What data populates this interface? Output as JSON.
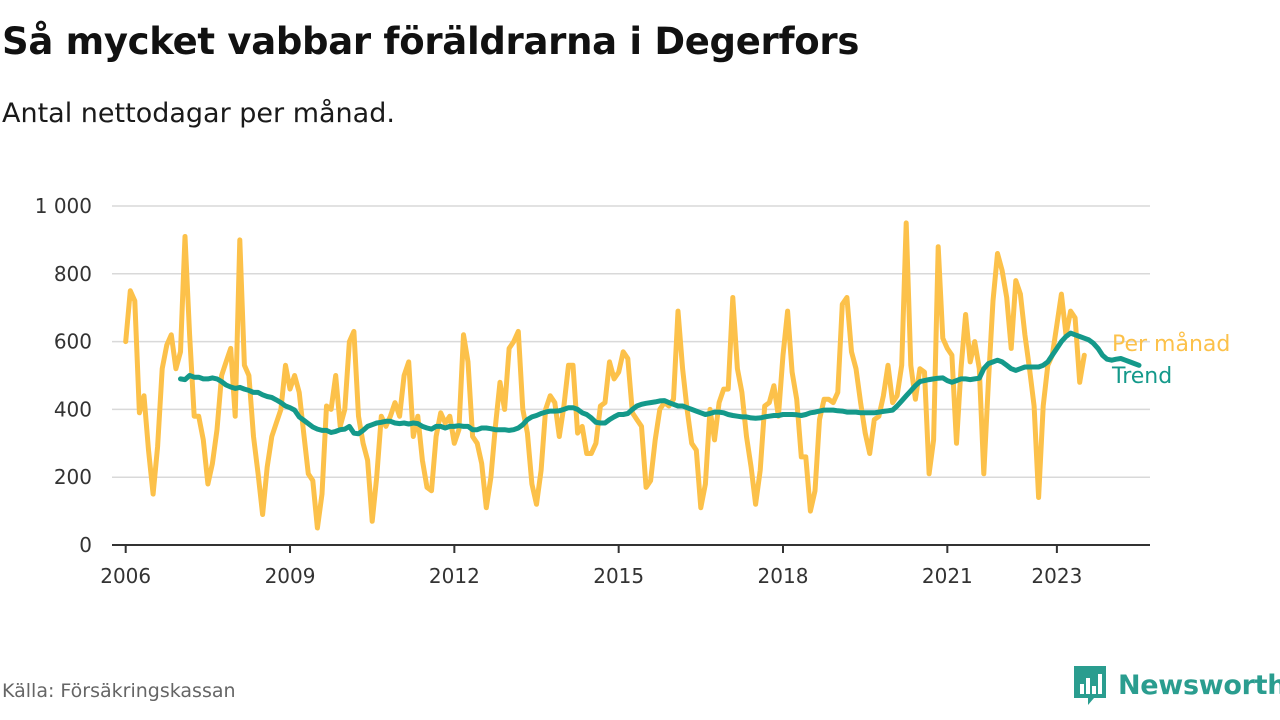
{
  "header": {
    "title": "Så mycket vabbar föräldrarna i Degerfors",
    "subtitle": "Antal nettodagar per månad."
  },
  "footer": {
    "source": "Källa: Försäkringskassan",
    "brand": "Newsworthy",
    "brand_icon": "newsworthy-logo-icon"
  },
  "colors": {
    "monthly": "#fcc14a",
    "trend": "#14998a",
    "grid": "#d9d9d9",
    "axis": "#333333"
  },
  "chart_data": {
    "type": "line",
    "title": "Så mycket vabbar föräldrarna i Degerfors",
    "subtitle": "Antal nettodagar per månad.",
    "xlabel": "",
    "ylabel": "",
    "x_start": "2006-01",
    "xlim": [
      2005.75,
      2024.7
    ],
    "ylim": [
      0,
      1000
    ],
    "y_ticks": [
      0,
      200,
      400,
      600,
      800,
      1000
    ],
    "y_tick_labels": [
      "0",
      "200",
      "400",
      "600",
      "800",
      "1 000"
    ],
    "x_ticks": [
      2006,
      2009,
      2012,
      2015,
      2018,
      2021,
      2023
    ],
    "x_tick_labels": [
      "2006",
      "2009",
      "2012",
      "2015",
      "2018",
      "2021",
      "2023"
    ],
    "grid": "horizontal",
    "legend": "direct labels at line ends",
    "series": [
      {
        "name": "Per månad",
        "color": "#fcc14a",
        "start": "2006-01",
        "values": [
          600,
          750,
          720,
          390,
          440,
          280,
          150,
          290,
          520,
          590,
          620,
          520,
          570,
          910,
          620,
          380,
          380,
          310,
          180,
          240,
          340,
          500,
          540,
          580,
          380,
          900,
          530,
          500,
          320,
          210,
          90,
          230,
          320,
          360,
          400,
          530,
          460,
          500,
          450,
          330,
          210,
          190,
          50,
          150,
          410,
          400,
          500,
          350,
          400,
          600,
          630,
          380,
          300,
          250,
          70,
          200,
          380,
          350,
          380,
          420,
          380,
          500,
          540,
          320,
          380,
          250,
          170,
          160,
          320,
          390,
          360,
          380,
          300,
          340,
          620,
          540,
          320,
          300,
          240,
          110,
          200,
          350,
          480,
          400,
          580,
          600,
          630,
          400,
          330,
          180,
          120,
          220,
          400,
          440,
          420,
          320,
          410,
          530,
          530,
          330,
          350,
          270,
          270,
          300,
          410,
          420,
          540,
          490,
          510,
          570,
          550,
          390,
          370,
          350,
          170,
          190,
          310,
          400,
          420,
          410,
          430,
          690,
          520,
          400,
          300,
          280,
          110,
          180,
          400,
          310,
          420,
          460,
          460,
          730,
          520,
          450,
          320,
          230,
          120,
          220,
          410,
          420,
          470,
          380,
          560,
          690,
          510,
          430,
          260,
          260,
          100,
          160,
          370,
          430,
          430,
          420,
          450,
          710,
          730,
          570,
          520,
          420,
          330,
          270,
          370,
          380,
          440,
          530,
          420,
          440,
          530,
          950,
          530,
          430,
          520,
          510,
          210,
          310,
          880,
          610,
          580,
          560,
          300,
          520,
          680,
          540,
          600,
          520,
          210,
          480,
          720,
          860,
          810,
          730,
          580,
          780,
          740,
          620,
          520,
          410,
          140,
          410,
          530,
          560,
          650,
          740,
          620,
          690,
          670,
          480,
          560
        ]
      },
      {
        "name": "Trend",
        "color": "#14998a",
        "start": "2007-01",
        "values": [
          490,
          488,
          500,
          495,
          495,
          490,
          490,
          493,
          490,
          482,
          472,
          466,
          462,
          465,
          460,
          456,
          450,
          450,
          443,
          438,
          435,
          428,
          420,
          410,
          405,
          398,
          378,
          368,
          358,
          348,
          342,
          338,
          338,
          332,
          335,
          340,
          342,
          350,
          330,
          328,
          338,
          350,
          355,
          360,
          362,
          365,
          365,
          360,
          358,
          360,
          357,
          360,
          358,
          350,
          345,
          342,
          350,
          350,
          345,
          350,
          350,
          352,
          350,
          350,
          340,
          340,
          345,
          345,
          343,
          340,
          340,
          340,
          338,
          340,
          345,
          355,
          370,
          378,
          382,
          388,
          392,
          395,
          395,
          396,
          400,
          405,
          405,
          400,
          390,
          385,
          375,
          362,
          360,
          360,
          370,
          378,
          385,
          385,
          388,
          400,
          410,
          415,
          418,
          420,
          422,
          425,
          426,
          420,
          415,
          410,
          410,
          405,
          400,
          395,
          390,
          385,
          388,
          392,
          392,
          390,
          385,
          382,
          380,
          378,
          378,
          375,
          374,
          375,
          378,
          380,
          382,
          382,
          385,
          385,
          385,
          384,
          382,
          385,
          390,
          392,
          395,
          398,
          398,
          398,
          396,
          395,
          392,
          392,
          392,
          390,
          390,
          390,
          390,
          392,
          394,
          396,
          398,
          410,
          425,
          440,
          455,
          470,
          482,
          485,
          488,
          490,
          492,
          493,
          485,
          480,
          485,
          490,
          490,
          488,
          490,
          492,
          520,
          535,
          540,
          545,
          540,
          530,
          520,
          515,
          520,
          525,
          525,
          525,
          525,
          530,
          540,
          560,
          580,
          600,
          615,
          625,
          620,
          615,
          610,
          605,
          595,
          580,
          560,
          548,
          545,
          548,
          550,
          545,
          540,
          535,
          530
        ]
      }
    ]
  }
}
